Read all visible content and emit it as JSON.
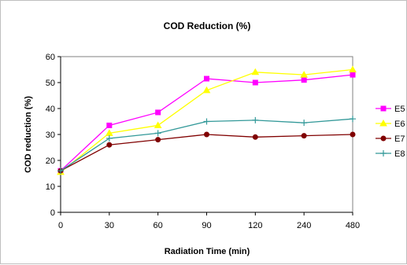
{
  "chart_data": {
    "type": "line",
    "title": "COD Reduction (%)",
    "xlabel": "Radiation Time (min)",
    "ylabel": "COD reduction (%)",
    "categories": [
      "0",
      "30",
      "60",
      "90",
      "120",
      "240",
      "480"
    ],
    "ylim": [
      0,
      60
    ],
    "yticks": [
      0,
      10,
      20,
      30,
      40,
      50,
      60
    ],
    "grid": false,
    "legend_position": "right",
    "series": [
      {
        "name": "E5",
        "values": [
          16,
          33.5,
          38.5,
          51.5,
          50,
          51,
          53
        ],
        "color": "#ff00ff",
        "marker": "square"
      },
      {
        "name": "E6",
        "values": [
          15.5,
          30.5,
          33.5,
          47,
          54,
          53,
          55
        ],
        "color": "#ffff00",
        "marker": "triangle"
      },
      {
        "name": "E7",
        "values": [
          16,
          26,
          28,
          30,
          29,
          29.5,
          30
        ],
        "color": "#800000",
        "marker": "circle"
      },
      {
        "name": "E8",
        "values": [
          16,
          28.5,
          30.5,
          35,
          35.5,
          34.5,
          36
        ],
        "color": "#339999",
        "marker": "plus"
      }
    ]
  }
}
